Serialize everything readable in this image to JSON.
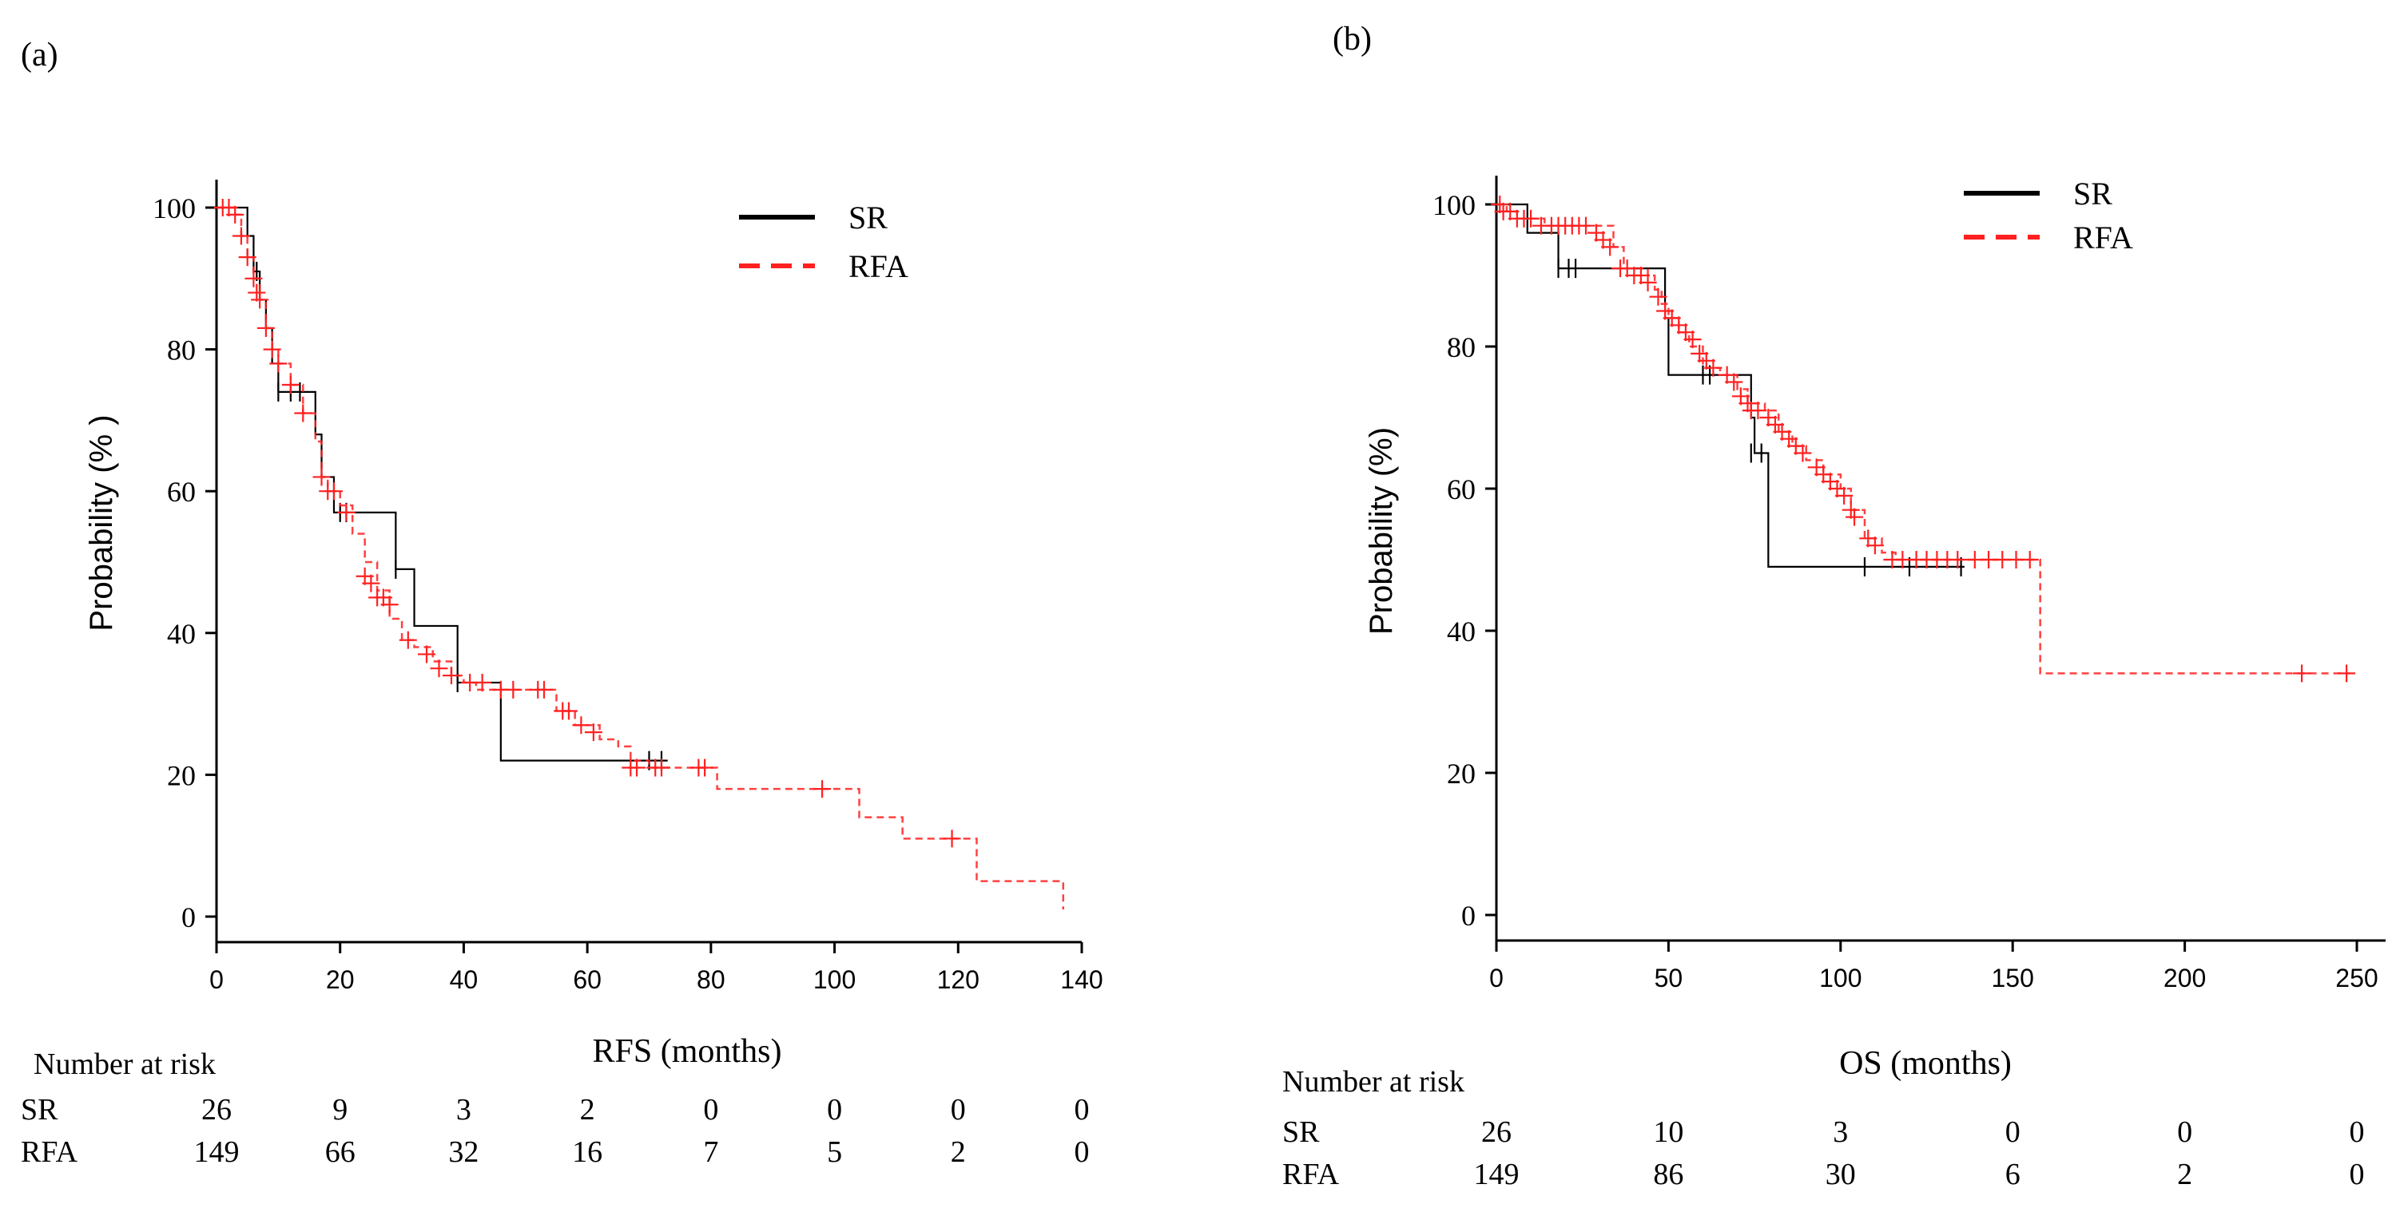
{
  "figure": {
    "panels": [
      "(a)",
      "(b)"
    ]
  },
  "colors": {
    "sr": "#000000",
    "rfa": "#ff2020",
    "axis": "#000000"
  },
  "chart_data": [
    {
      "type": "line",
      "panel": "(a)",
      "xlabel": "RFS (months)",
      "ylabel": "Probability (% )",
      "xlim": [
        0,
        140
      ],
      "ylim": [
        0,
        100
      ],
      "xticks": [
        0,
        20,
        40,
        60,
        80,
        100,
        120,
        140
      ],
      "yticks": [
        0,
        20,
        40,
        60,
        80,
        100
      ],
      "legend": {
        "position": "top-right",
        "entries": [
          "SR",
          "RFA"
        ]
      },
      "series": [
        {
          "name": "SR",
          "style": "solid",
          "steps": [
            [
              0,
              100
            ],
            [
              5,
              96
            ],
            [
              6,
              91
            ],
            [
              7,
              87
            ],
            [
              8,
              83
            ],
            [
              9,
              78
            ],
            [
              10,
              74
            ],
            [
              15,
              74
            ],
            [
              16,
              68
            ],
            [
              17,
              62
            ],
            [
              19,
              57
            ],
            [
              28,
              57
            ],
            [
              29,
              49
            ],
            [
              31,
              49
            ],
            [
              32,
              41
            ],
            [
              38,
              41
            ],
            [
              39,
              33
            ],
            [
              45,
              33
            ],
            [
              46,
              22
            ],
            [
              73,
              22
            ]
          ],
          "censors": [
            [
              6.5,
              91
            ],
            [
              10,
              74
            ],
            [
              12,
              74
            ],
            [
              13.5,
              74
            ],
            [
              20,
              57
            ],
            [
              21,
              57
            ],
            [
              29,
              49
            ],
            [
              39,
              33
            ],
            [
              70,
              22
            ],
            [
              72,
              22
            ]
          ]
        },
        {
          "name": "RFA",
          "style": "dashed",
          "steps": [
            [
              0,
              100
            ],
            [
              3,
              99
            ],
            [
              4,
              96
            ],
            [
              5,
              93
            ],
            [
              6,
              90
            ],
            [
              7,
              87
            ],
            [
              8,
              83
            ],
            [
              9,
              80
            ],
            [
              10,
              78
            ],
            [
              12,
              75
            ],
            [
              14,
              71
            ],
            [
              16,
              67
            ],
            [
              17,
              62
            ],
            [
              18,
              60
            ],
            [
              20,
              58
            ],
            [
              22,
              54
            ],
            [
              24,
              50
            ],
            [
              26,
              46
            ],
            [
              28,
              42
            ],
            [
              30,
              39
            ],
            [
              32,
              38
            ],
            [
              35,
              36
            ],
            [
              38,
              34
            ],
            [
              40,
              33
            ],
            [
              42,
              32
            ],
            [
              50,
              32
            ],
            [
              55,
              29
            ],
            [
              58,
              27
            ],
            [
              62,
              25
            ],
            [
              65,
              24
            ],
            [
              67,
              22
            ],
            [
              70,
              21
            ],
            [
              80,
              21
            ],
            [
              81,
              18
            ],
            [
              103,
              18
            ],
            [
              104,
              14
            ],
            [
              110,
              14
            ],
            [
              111,
              11
            ],
            [
              122,
              11
            ],
            [
              123,
              5
            ],
            [
              136,
              5
            ],
            [
              137,
              1
            ]
          ],
          "censors": [
            [
              1,
              100
            ],
            [
              2,
              100
            ],
            [
              3,
              99
            ],
            [
              4,
              96
            ],
            [
              5,
              93
            ],
            [
              6,
              90
            ],
            [
              6.5,
              88
            ],
            [
              7,
              87
            ],
            [
              8,
              83
            ],
            [
              9,
              80
            ],
            [
              10,
              78
            ],
            [
              12,
              75
            ],
            [
              14,
              71
            ],
            [
              17,
              62
            ],
            [
              18,
              60
            ],
            [
              19,
              60
            ],
            [
              21,
              57
            ],
            [
              24,
              48
            ],
            [
              25,
              47
            ],
            [
              26,
              45
            ],
            [
              27,
              45
            ],
            [
              28,
              44
            ],
            [
              31,
              39
            ],
            [
              34,
              37
            ],
            [
              36,
              35
            ],
            [
              38,
              34
            ],
            [
              41,
              33
            ],
            [
              43,
              33
            ],
            [
              46,
              32
            ],
            [
              48,
              32
            ],
            [
              52,
              32
            ],
            [
              53,
              32
            ],
            [
              56,
              29
            ],
            [
              57,
              29
            ],
            [
              59,
              27
            ],
            [
              61,
              26
            ],
            [
              67,
              21
            ],
            [
              68,
              21
            ],
            [
              71,
              21
            ],
            [
              72,
              21
            ],
            [
              78,
              21
            ],
            [
              79,
              21
            ],
            [
              98,
              18
            ],
            [
              119,
              11
            ]
          ]
        }
      ],
      "risk_table": {
        "title": "Number at risk",
        "times": [
          0,
          20,
          40,
          60,
          80,
          100,
          120,
          140
        ],
        "rows": [
          {
            "label": "SR",
            "values": [
              "26",
              "9",
              "3",
              "2",
              "0",
              "0",
              "0",
              "0"
            ]
          },
          {
            "label": "RFA",
            "values": [
              "149",
              "66",
              "32",
              "16",
              "7",
              "5",
              "2",
              "0"
            ]
          }
        ]
      }
    },
    {
      "type": "line",
      "panel": "(b)",
      "xlabel": "OS (months)",
      "ylabel": "Probability (%)",
      "xlim": [
        0,
        250
      ],
      "ylim": [
        0,
        100
      ],
      "xticks": [
        0,
        50,
        100,
        150,
        200,
        250
      ],
      "yticks": [
        0,
        20,
        40,
        60,
        80,
        100
      ],
      "legend": {
        "position": "top-right",
        "entries": [
          "SR",
          "RFA"
        ]
      },
      "series": [
        {
          "name": "SR",
          "style": "solid",
          "steps": [
            [
              0,
              100
            ],
            [
              8,
              100
            ],
            [
              9,
              96
            ],
            [
              17,
              96
            ],
            [
              18,
              91
            ],
            [
              48,
              91
            ],
            [
              49,
              84
            ],
            [
              50,
              76
            ],
            [
              73,
              76
            ],
            [
              74,
              70
            ],
            [
              75,
              65
            ],
            [
              78,
              65
            ],
            [
              79,
              49
            ],
            [
              136,
              49
            ]
          ],
          "censors": [
            [
              18,
              91
            ],
            [
              21,
              91
            ],
            [
              23,
              91
            ],
            [
              60,
              76
            ],
            [
              62,
              76
            ],
            [
              74,
              65
            ],
            [
              77,
              65
            ],
            [
              107,
              49
            ],
            [
              120,
              49
            ],
            [
              135,
              49
            ]
          ]
        },
        {
          "name": "RFA",
          "style": "dashed",
          "steps": [
            [
              0,
              100
            ],
            [
              3,
              99
            ],
            [
              6,
              98
            ],
            [
              10,
              98
            ],
            [
              14,
              97
            ],
            [
              30,
              97
            ],
            [
              34,
              94
            ],
            [
              37,
              91
            ],
            [
              44,
              90
            ],
            [
              46,
              88
            ],
            [
              48,
              86
            ],
            [
              50,
              84
            ],
            [
              53,
              82
            ],
            [
              56,
              80
            ],
            [
              60,
              77
            ],
            [
              65,
              76
            ],
            [
              70,
              74
            ],
            [
              73,
              72
            ],
            [
              78,
              71
            ],
            [
              82,
              68
            ],
            [
              86,
              66
            ],
            [
              90,
              64
            ],
            [
              95,
              62
            ],
            [
              100,
              60
            ],
            [
              103,
              57
            ],
            [
              107,
              53
            ],
            [
              112,
              51
            ],
            [
              116,
              50
            ],
            [
              157,
              50
            ],
            [
              158,
              34
            ],
            [
              248,
              34
            ]
          ],
          "censors": [
            [
              1,
              100
            ],
            [
              2,
              99
            ],
            [
              4,
              99
            ],
            [
              6,
              98
            ],
            [
              8,
              98
            ],
            [
              10,
              98
            ],
            [
              13,
              97
            ],
            [
              16,
              97
            ],
            [
              18,
              97
            ],
            [
              20,
              97
            ],
            [
              22,
              97
            ],
            [
              24,
              97
            ],
            [
              26,
              97
            ],
            [
              29,
              96
            ],
            [
              31,
              95
            ],
            [
              33,
              94
            ],
            [
              36,
              91
            ],
            [
              38,
              91
            ],
            [
              40,
              90
            ],
            [
              42,
              90
            ],
            [
              44,
              89
            ],
            [
              47,
              87
            ],
            [
              49,
              85
            ],
            [
              51,
              84
            ],
            [
              53,
              83
            ],
            [
              55,
              82
            ],
            [
              57,
              81
            ],
            [
              59,
              79
            ],
            [
              61,
              78
            ],
            [
              63,
              77
            ],
            [
              67,
              76
            ],
            [
              69,
              75
            ],
            [
              71,
              73
            ],
            [
              73,
              72
            ],
            [
              74,
              71
            ],
            [
              76,
              71
            ],
            [
              79,
              70
            ],
            [
              81,
              69
            ],
            [
              83,
              68
            ],
            [
              85,
              67
            ],
            [
              87,
              66
            ],
            [
              89,
              65
            ],
            [
              93,
              63
            ],
            [
              95,
              62
            ],
            [
              97,
              61
            ],
            [
              99,
              60
            ],
            [
              101,
              59
            ],
            [
              103,
              57
            ],
            [
              104,
              56
            ],
            [
              108,
              53
            ],
            [
              110,
              52
            ],
            [
              115,
              50
            ],
            [
              118,
              50
            ],
            [
              122,
              50
            ],
            [
              125,
              50
            ],
            [
              128,
              50
            ],
            [
              131,
              50
            ],
            [
              134,
              50
            ],
            [
              139,
              50
            ],
            [
              143,
              50
            ],
            [
              147,
              50
            ],
            [
              151,
              50
            ],
            [
              155,
              50
            ],
            [
              234,
              34
            ],
            [
              247,
              34
            ]
          ]
        }
      ],
      "risk_table": {
        "title": "Number at risk",
        "times": [
          0,
          50,
          100,
          150,
          200,
          250
        ],
        "rows": [
          {
            "label": "SR",
            "values": [
              "26",
              "10",
              "3",
              "0",
              "0",
              "0"
            ]
          },
          {
            "label": "RFA",
            "values": [
              "149",
              "86",
              "30",
              "6",
              "2",
              "0"
            ]
          }
        ]
      }
    }
  ]
}
